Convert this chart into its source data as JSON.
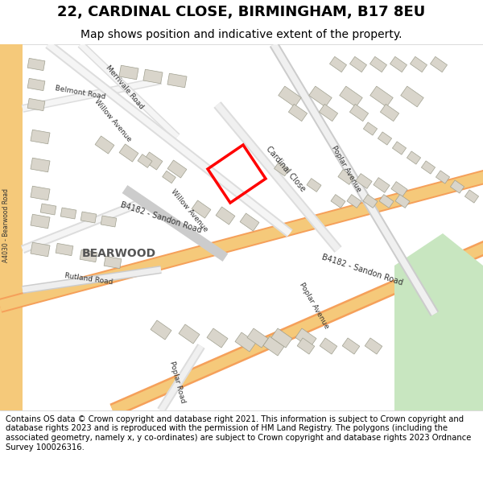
{
  "title_line1": "22, CARDINAL CLOSE, BIRMINGHAM, B17 8EU",
  "title_line2": "Map shows position and indicative extent of the property.",
  "footer_text": "Contains OS data © Crown copyright and database right 2021. This information is subject to Crown copyright and database rights 2023 and is reproduced with the permission of HM Land Registry. The polygons (including the associated geometry, namely x, y co-ordinates) are subject to Crown copyright and database rights 2023 Ordnance Survey 100026316.",
  "map_bg_color": "#f0efeb",
  "title_bg_color": "#ffffff",
  "footer_bg_color": "#ffffff",
  "red_box_color": "#ff0000",
  "building_color": "#d9d5cb",
  "building_edge_color": "#a0a090",
  "green_area_color": "#c8e6c0"
}
